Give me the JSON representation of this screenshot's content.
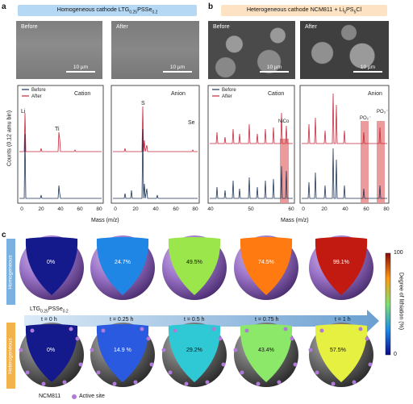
{
  "panel_a": {
    "letter": "a",
    "banner": "Homogeneous cathode LTG0.25PSSe0.2",
    "sem_before_label": "Before",
    "sem_after_label": "After",
    "scale_bar": "10 µm",
    "legend_before": "Before",
    "legend_after": "After",
    "cation_title": "Cation",
    "anion_title": "Anion",
    "peak_li": "Li",
    "peak_ti": "Ti",
    "peak_s": "S",
    "peak_se": "Se",
    "ylabel": "Counts (0.12 amu bin)",
    "x_ticks_cation": [
      "0",
      "20",
      "40",
      "60",
      "80"
    ],
    "x_ticks_anion": [
      "0",
      "20",
      "40",
      "60",
      "80"
    ]
  },
  "panel_b": {
    "letter": "b",
    "banner": "Heterogeneous cathode NCM811 + Li6PS5Cl",
    "sem_before_label": "Before",
    "sem_after_label": "After",
    "scale_bar": "10 µm",
    "legend_before": "Before",
    "legend_after": "After",
    "cation_title": "Cation",
    "anion_title": "Anion",
    "peak_nico": "NiCo",
    "peak_po2": "PO2−",
    "peak_po3": "PO3−",
    "x_ticks_cation": [
      "40",
      "50",
      "60"
    ],
    "x_ticks_anion": [
      "0",
      "20",
      "40",
      "60",
      "80"
    ]
  },
  "xlabel": "Mass (m/z)",
  "panel_c": {
    "letter": "c",
    "row_top_label": "Homogeneous",
    "row_bottom_label": "Heterogeneous",
    "material_top": "LTG0.25PSSe0.2",
    "material_bottom": "NCM811",
    "active_site": "Active site",
    "times": [
      "t = 0 h",
      "t = 0.25 h",
      "t = 0.5 h",
      "t = 0.75 h",
      "t = 1 h"
    ],
    "homogeneous_values": [
      "0%",
      "24.7%",
      "49.5%",
      "74.5%",
      "99.1%"
    ],
    "heterogeneous_values": [
      "0%",
      "14.9 %",
      "29.2%",
      "43.4%",
      "57.5%"
    ],
    "colorbar_max": "100",
    "colorbar_min": "0",
    "colorbar_label": "Degree of lithiation (%)",
    "colors": {
      "homogeneous": [
        "#141a8c",
        "#1f86e6",
        "#9be64a",
        "#ff7a10",
        "#c21a10"
      ],
      "heterogeneous": [
        "#141a8c",
        "#2a5ae0",
        "#2fc9d6",
        "#8ce868",
        "#e6f040"
      ]
    }
  },
  "colors": {
    "before": "#1d3557",
    "after": "#c8283c",
    "highlight": "#e8898a",
    "banner_a": "#b5d9f5",
    "banner_b": "#fde3c4"
  }
}
